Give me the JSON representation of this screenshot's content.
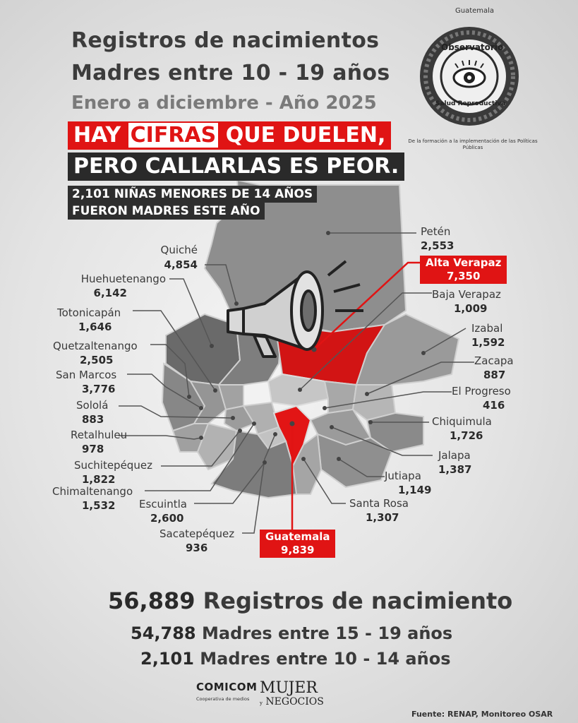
{
  "header": {
    "title_line1": "Registros de nacimientos",
    "title_line2": "Madres entre 10 - 19 años",
    "title_line3": "Enero a diciembre - Año 2025"
  },
  "seal": {
    "country": "Guatemala",
    "name_line1": "Observatorio",
    "name_line2": "Salud Reproductiva",
    "motto": "De la formación a la implementación de las Políticas Públicas"
  },
  "slogan": {
    "hay": "HAY",
    "cifras": "CIFRAS",
    "rest1": "QUE DUELEN,",
    "line2": "PERO CALLARLAS ES PEOR."
  },
  "subtitle": {
    "line1": "2,101 NIÑAS MENORES DE 14 AÑOS",
    "line2": "FUERON MADRES ESTE AÑO"
  },
  "departments": [
    {
      "name": "Petén",
      "value": "2,553"
    },
    {
      "name": "Quiché",
      "value": "4,854"
    },
    {
      "name": "Huehuetenango",
      "value": "6,142"
    },
    {
      "name": "Totonicapán",
      "value": "1,646"
    },
    {
      "name": "Quetzaltenango",
      "value": "2,505"
    },
    {
      "name": "San Marcos",
      "value": "3,776"
    },
    {
      "name": "Sololá",
      "value": "883"
    },
    {
      "name": "Retalhuleu",
      "value": "978"
    },
    {
      "name": "Suchitepéquez",
      "value": "1,822"
    },
    {
      "name": "Chimaltenango",
      "value": "1,532"
    },
    {
      "name": "Escuintla",
      "value": "2,600"
    },
    {
      "name": "Sacatepéquez",
      "value": "936"
    },
    {
      "name": "Alta Verapaz",
      "value": "7,350"
    },
    {
      "name": "Baja Verapaz",
      "value": "1,009"
    },
    {
      "name": "Izabal",
      "value": "1,592"
    },
    {
      "name": "Zacapa",
      "value": "887"
    },
    {
      "name": "El Progreso",
      "value": "416"
    },
    {
      "name": "Chiquimula",
      "value": "1,726"
    },
    {
      "name": "Jalapa",
      "value": "1,387"
    },
    {
      "name": "Jutiapa",
      "value": "1,149"
    },
    {
      "name": "Santa Rosa",
      "value": "1,307"
    },
    {
      "name": "Guatemala",
      "value": "9,839"
    }
  ],
  "highlight_color": "#e01414",
  "totals": {
    "total_number": "56,889",
    "total_label": "Registros de nacimiento",
    "older_number": "54,788",
    "older_label": "Madres entre 15 - 19 años",
    "younger_number": "2,101",
    "younger_label": "Madres entre 10 - 14 años"
  },
  "logos": {
    "cooperative_name": "COMICOM",
    "cooperative_tag": "Cooperativa de medios",
    "partner_line1": "MUJER",
    "partner_line2": "NEGOCIOS",
    "partner_small": "y"
  },
  "source": "Fuente: RENAP, Monitoreo OSAR"
}
